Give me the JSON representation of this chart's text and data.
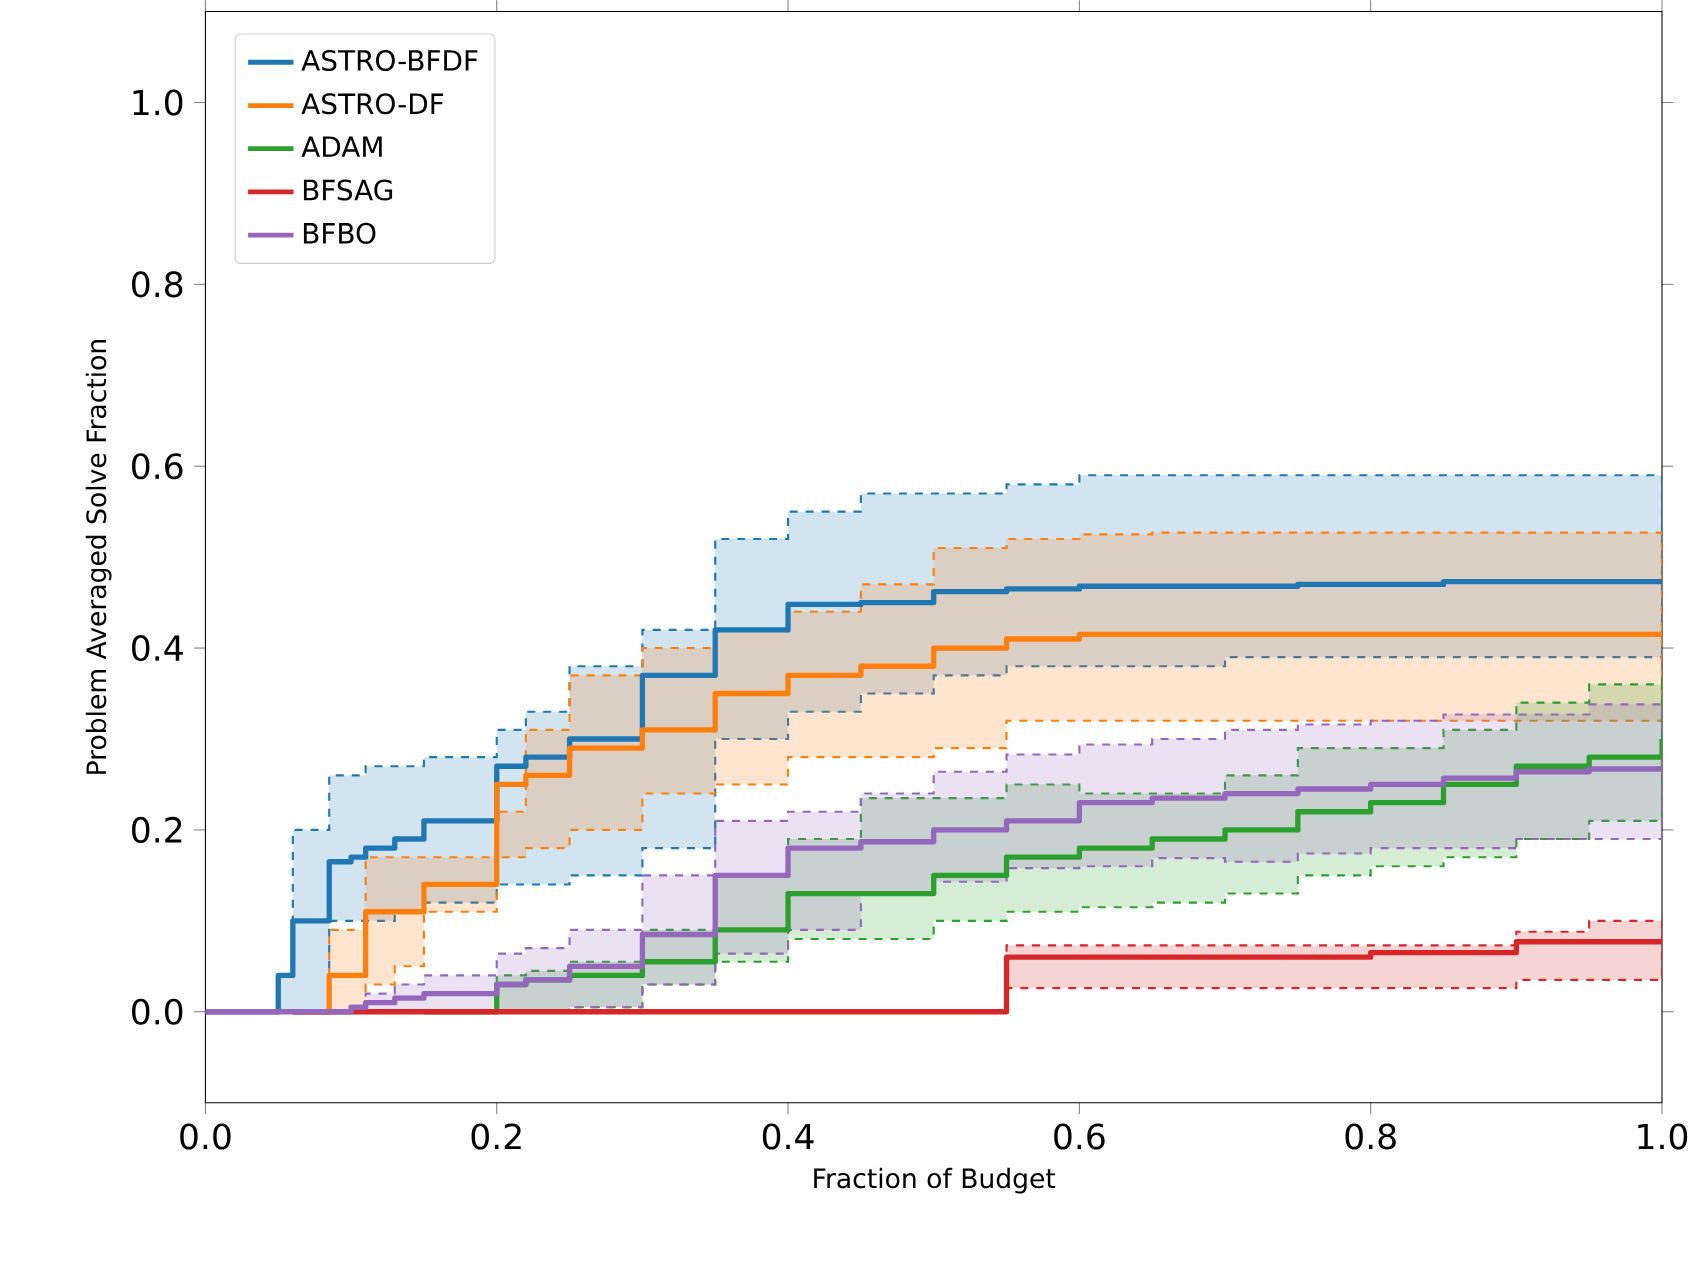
{
  "chart_data": {
    "type": "step",
    "xlabel": "Fraction of Budget",
    "ylabel": "Problem Averaged Solve Fraction",
    "x": [
      0,
      0.05,
      0.06,
      0.085,
      0.1,
      0.11,
      0.13,
      0.15,
      0.2,
      0.22,
      0.25,
      0.3,
      0.35,
      0.4,
      0.45,
      0.5,
      0.55,
      0.6,
      0.65,
      0.7,
      0.75,
      0.8,
      0.85,
      0.9,
      0.95,
      1.0
    ],
    "series": [
      {
        "name": "ASTRO-BFDF",
        "color": "#1f77b4",
        "values": [
          0,
          0.04,
          0.1,
          0.165,
          0.17,
          0.18,
          0.19,
          0.21,
          0.27,
          0.28,
          0.3,
          0.37,
          0.42,
          0.448,
          0.45,
          0.462,
          0.465,
          0.468,
          0.468,
          0.468,
          0.47,
          0.47,
          0.473,
          0.473,
          0.473,
          0.473
        ],
        "lower": [
          0,
          0,
          0,
          0.1,
          0.1,
          0.1,
          0.11,
          0.12,
          0.14,
          0.14,
          0.15,
          0.18,
          0.3,
          0.33,
          0.35,
          0.37,
          0.38,
          0.38,
          0.38,
          0.39,
          0.39,
          0.39,
          0.39,
          0.39,
          0.39,
          0.39
        ],
        "upper": [
          0,
          0.04,
          0.2,
          0.26,
          0.26,
          0.27,
          0.27,
          0.28,
          0.31,
          0.33,
          0.38,
          0.42,
          0.52,
          0.55,
          0.57,
          0.57,
          0.58,
          0.59,
          0.59,
          0.59,
          0.59,
          0.59,
          0.59,
          0.59,
          0.59,
          0.59
        ]
      },
      {
        "name": "ASTRO-DF",
        "color": "#ff7f0e",
        "values": [
          null,
          null,
          0,
          0.04,
          0.04,
          0.11,
          0.11,
          0.14,
          0.25,
          0.26,
          0.29,
          0.31,
          0.35,
          0.37,
          0.38,
          0.4,
          0.41,
          0.415,
          0.415,
          0.415,
          0.415,
          0.415,
          0.415,
          0.415,
          0.415,
          0.415
        ],
        "lower": [
          0,
          0,
          0,
          0,
          0,
          0.03,
          0.05,
          0.11,
          0.17,
          0.18,
          0.2,
          0.24,
          0.25,
          0.28,
          0.28,
          0.29,
          0.32,
          0.32,
          0.32,
          0.32,
          0.32,
          0.32,
          0.32,
          0.32,
          0.32,
          0.32
        ],
        "upper": [
          0,
          0,
          0,
          0.09,
          0.09,
          0.17,
          0.17,
          0.17,
          0.22,
          0.31,
          0.37,
          0.4,
          0.42,
          0.44,
          0.47,
          0.51,
          0.52,
          0.525,
          0.527,
          0.527,
          0.527,
          0.527,
          0.527,
          0.527,
          0.527,
          0.527
        ]
      },
      {
        "name": "ADAM",
        "color": "#2ca02c",
        "values": [
          null,
          null,
          null,
          null,
          null,
          null,
          null,
          0,
          0.03,
          0.035,
          0.04,
          0.055,
          0.09,
          0.13,
          0.13,
          0.15,
          0.17,
          0.18,
          0.19,
          0.2,
          0.22,
          0.23,
          0.25,
          0.27,
          0.28,
          0.3
        ],
        "lower": [
          0,
          0,
          0,
          0,
          0,
          0,
          0,
          0,
          0,
          0,
          0.005,
          0.03,
          0.055,
          0.08,
          0.08,
          0.1,
          0.11,
          0.115,
          0.12,
          0.13,
          0.15,
          0.16,
          0.17,
          0.19,
          0.21,
          0.21
        ],
        "upper": [
          0,
          0,
          0,
          0,
          0,
          0,
          0,
          0,
          0.04,
          0.045,
          0.055,
          0.09,
          0.15,
          0.19,
          0.235,
          0.235,
          0.25,
          0.24,
          0.24,
          0.26,
          0.29,
          0.29,
          0.31,
          0.34,
          0.36,
          0.37
        ]
      },
      {
        "name": "BFSAG",
        "color": "#d62728",
        "values": [
          null,
          null,
          0,
          0,
          0,
          0,
          0,
          0,
          0,
          0,
          0,
          0,
          0,
          0,
          0,
          0,
          0.06,
          0.06,
          0.06,
          0.06,
          0.06,
          0.065,
          0.065,
          0.077,
          0.077,
          0.077
        ],
        "lower": [
          0,
          0,
          0,
          0,
          0,
          0,
          0,
          0,
          0,
          0,
          0,
          0,
          0,
          0,
          0,
          0,
          0.026,
          0.026,
          0.026,
          0.026,
          0.026,
          0.026,
          0.026,
          0.035,
          0.035,
          0.035
        ],
        "upper": [
          0,
          0,
          0,
          0,
          0,
          0,
          0,
          0,
          0,
          0,
          0,
          0,
          0,
          0,
          0,
          0,
          0.073,
          0.073,
          0.073,
          0.073,
          0.073,
          0.073,
          0.073,
          0.088,
          0.1,
          0.1
        ]
      },
      {
        "name": "BFBO",
        "color": "#9467bd",
        "values": [
          0,
          0,
          0,
          0,
          0.005,
          0.01,
          0.015,
          0.02,
          0.03,
          0.035,
          0.05,
          0.085,
          0.15,
          0.18,
          0.187,
          0.2,
          0.21,
          0.23,
          0.235,
          0.24,
          0.245,
          0.25,
          0.257,
          0.264,
          0.267,
          0.27
        ],
        "lower": [
          0,
          0,
          0,
          0,
          0,
          0,
          0,
          0,
          0,
          0,
          0.005,
          0.03,
          0.064,
          0.09,
          0.13,
          0.143,
          0.158,
          0.16,
          0.169,
          0.165,
          0.174,
          0.18,
          0.18,
          0.19,
          0.19,
          0.19
        ],
        "upper": [
          0,
          0,
          0,
          0,
          0.005,
          0.02,
          0.03,
          0.04,
          0.064,
          0.07,
          0.09,
          0.15,
          0.21,
          0.22,
          0.24,
          0.264,
          0.283,
          0.294,
          0.3,
          0.31,
          0.316,
          0.32,
          0.327,
          0.327,
          0.338,
          0.34
        ]
      }
    ],
    "xlim": [
      0,
      1
    ],
    "ylim": [
      -0.1,
      1.1
    ],
    "xticks": [
      {
        "value": 0,
        "label": "0.0"
      },
      0.2,
      0.4,
      0.6,
      0.8,
      {
        "value": 1,
        "label": "1.0"
      }
    ],
    "yticks": [
      {
        "value": 0,
        "label": "0.0"
      },
      0.2,
      0.4,
      0.6,
      0.8,
      {
        "value": 1,
        "label": "1.0"
      }
    ],
    "legend": "top left"
  }
}
